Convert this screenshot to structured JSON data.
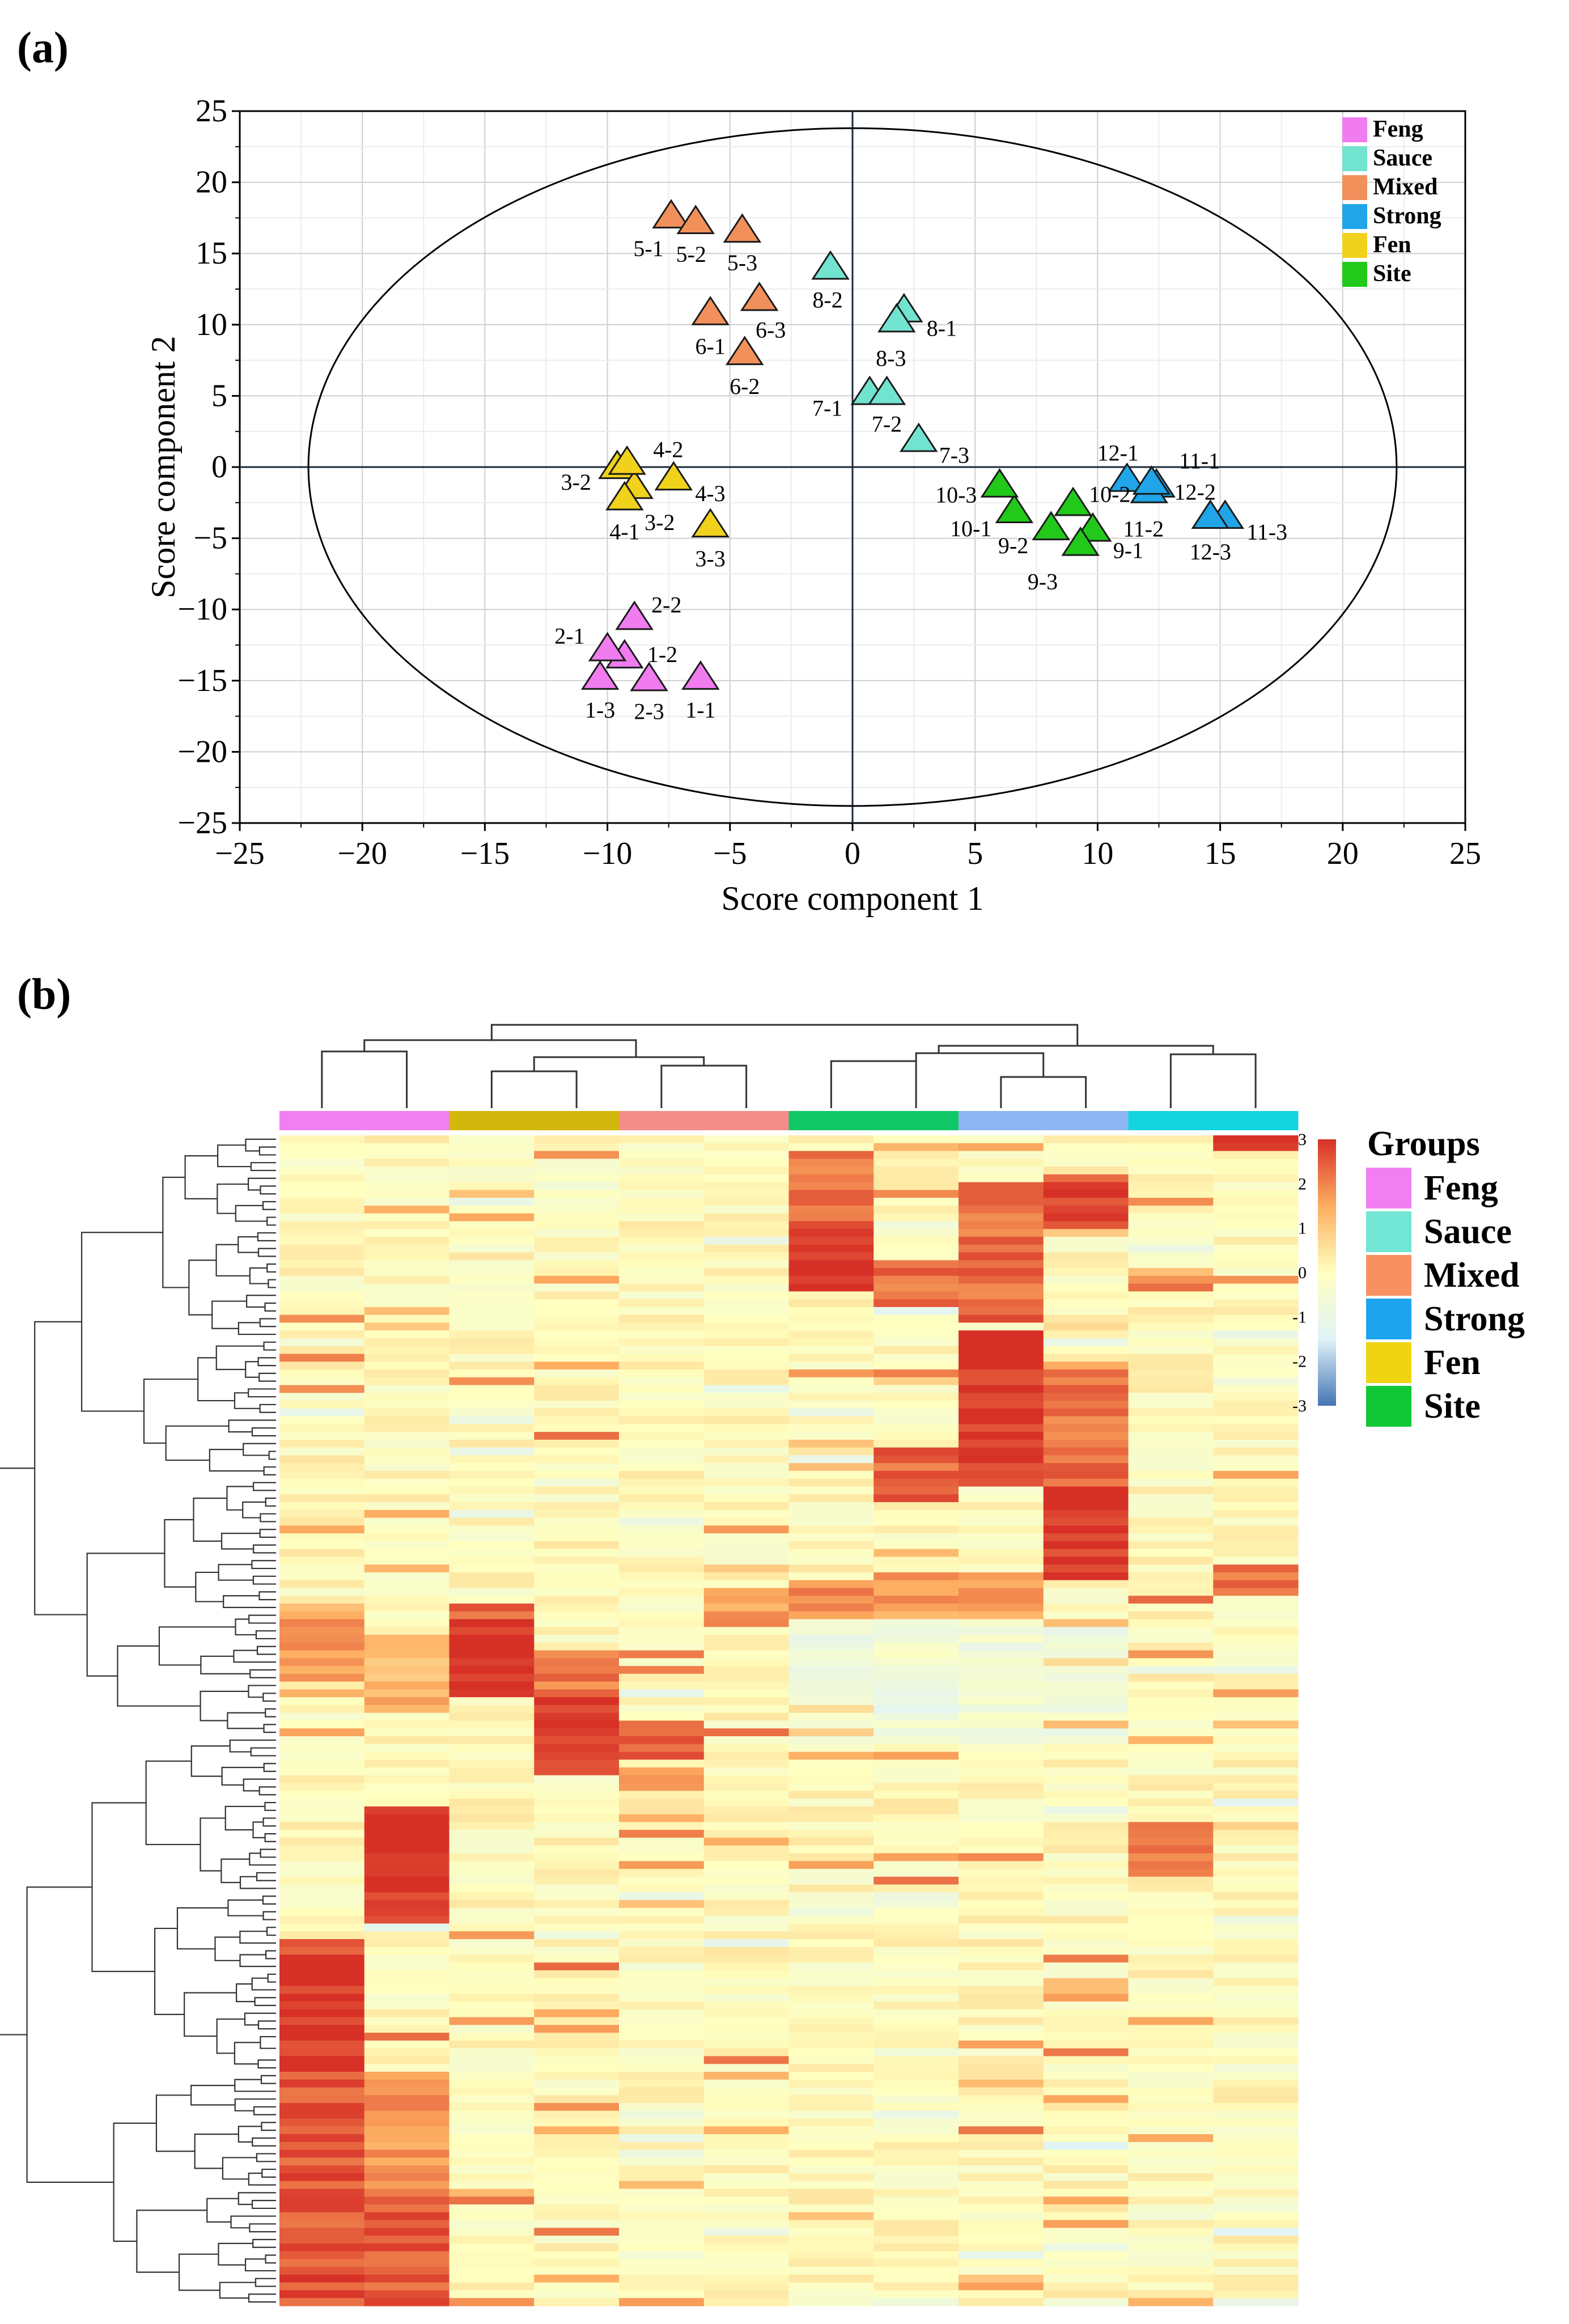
{
  "panels": {
    "a_label": "(a)",
    "b_label": "(b)"
  },
  "chart_data": [
    {
      "type": "scatter",
      "title": "",
      "xlabel": "Score component 1",
      "ylabel": "Score component 2",
      "xlim": [
        -25,
        25
      ],
      "ylim": [
        -25,
        25
      ],
      "xticks": [
        -25,
        -20,
        -15,
        -10,
        -5,
        0,
        5,
        10,
        15,
        20,
        25
      ],
      "yticks": [
        -25,
        -20,
        -15,
        -10,
        -5,
        0,
        5,
        10,
        15,
        20,
        25
      ],
      "xtick_labels": [
        "−25",
        "−20",
        "−15",
        "−10",
        "−5",
        "0",
        "5",
        "10",
        "15",
        "20",
        "25"
      ],
      "ytick_labels": [
        "−25",
        "−20",
        "−15",
        "−10",
        "−5",
        "0",
        "5",
        "10",
        "15",
        "20",
        "25"
      ],
      "grid": true,
      "confidence_ellipse": {
        "cx": 0,
        "cy": 0,
        "rx": 22.2,
        "ry": 23.8
      },
      "legend_position": "top-right",
      "series": [
        {
          "name": "Feng",
          "color": "#f07cf0",
          "points": [
            {
              "id": "1-1",
              "x": -6.2,
              "y": -14.8
            },
            {
              "id": "1-2",
              "x": -9.3,
              "y": -13.3
            },
            {
              "id": "1-3",
              "x": -10.3,
              "y": -14.8
            },
            {
              "id": "2-1",
              "x": -10.0,
              "y": -12.8
            },
            {
              "id": "2-2",
              "x": -8.9,
              "y": -10.6
            },
            {
              "id": "2-3",
              "x": -8.3,
              "y": -14.9
            }
          ]
        },
        {
          "name": "Sauce",
          "color": "#72e3cf",
          "points": [
            {
              "id": "7-1",
              "x": 0.7,
              "y": 5.2
            },
            {
              "id": "7-2",
              "x": 1.4,
              "y": 5.2
            },
            {
              "id": "7-3",
              "x": 2.7,
              "y": 1.9
            },
            {
              "id": "8-1",
              "x": 2.1,
              "y": 11.0
            },
            {
              "id": "8-2",
              "x": -0.9,
              "y": 14.0
            },
            {
              "id": "8-3",
              "x": 1.8,
              "y": 10.3
            }
          ]
        },
        {
          "name": "Mixed",
          "color": "#f2905c",
          "points": [
            {
              "id": "5-1",
              "x": -7.4,
              "y": 17.6
            },
            {
              "id": "5-2",
              "x": -6.4,
              "y": 17.2
            },
            {
              "id": "5-3",
              "x": -4.5,
              "y": 16.6
            },
            {
              "id": "6-1",
              "x": -5.8,
              "y": 10.8
            },
            {
              "id": "6-2",
              "x": -4.4,
              "y": 8.0
            },
            {
              "id": "6-3",
              "x": -3.8,
              "y": 11.8
            }
          ]
        },
        {
          "name": "Strong",
          "color": "#20a5e8",
          "points": [
            {
              "id": "11-1",
              "x": 12.4,
              "y": -1.3
            },
            {
              "id": "11-2",
              "x": 12.1,
              "y": -1.7
            },
            {
              "id": "11-3",
              "x": 15.2,
              "y": -3.5
            },
            {
              "id": "12-1",
              "x": 11.2,
              "y": -0.9
            },
            {
              "id": "12-2",
              "x": 12.2,
              "y": -1.1
            },
            {
              "id": "12-3",
              "x": 14.6,
              "y": -3.5
            }
          ]
        },
        {
          "name": "Fen",
          "color": "#f0d21c",
          "points": [
            {
              "id": "3-2",
              "x": -9.6,
              "y": 0.0
            },
            {
              "id": "3-2",
              "x": -8.9,
              "y": -1.4
            },
            {
              "id": "3-3",
              "x": -5.8,
              "y": -4.1
            },
            {
              "id": "4-1",
              "x": -9.3,
              "y": -2.2
            },
            {
              "id": "4-2",
              "x": -9.2,
              "y": 0.3
            },
            {
              "id": "4-3",
              "x": -7.3,
              "y": -0.8
            }
          ]
        },
        {
          "name": "Site",
          "color": "#22c81a",
          "points": [
            {
              "id": "9-1",
              "x": 9.8,
              "y": -4.4
            },
            {
              "id": "9-2",
              "x": 8.1,
              "y": -4.3
            },
            {
              "id": "9-3",
              "x": 9.3,
              "y": -5.4
            },
            {
              "id": "10-1",
              "x": 6.6,
              "y": -3.1
            },
            {
              "id": "10-2",
              "x": 9.0,
              "y": -2.6
            },
            {
              "id": "10-3",
              "x": 6.0,
              "y": -1.3
            }
          ]
        }
      ]
    },
    {
      "type": "heatmap",
      "title": "",
      "legend_title": "Groups",
      "groups": [
        {
          "name": "Feng",
          "color": "#f27ff2"
        },
        {
          "name": "Sauce",
          "color": "#72e6d4"
        },
        {
          "name": "Mixed",
          "color": "#f79160"
        },
        {
          "name": "Strong",
          "color": "#1ea4ef"
        },
        {
          "name": "Fen",
          "color": "#f0d414"
        },
        {
          "name": "Site",
          "color": "#10c835"
        }
      ],
      "column_group_colors": [
        "#f27ff2",
        "#d4b70c",
        "#f48c88",
        "#10c866",
        "#8cb7f2",
        "#14d4e0"
      ],
      "colorbar": {
        "range": [
          -3,
          3
        ],
        "ticks": [
          3,
          2,
          1,
          0,
          -1,
          -2,
          -3
        ],
        "tick_labels": [
          "3",
          "2",
          "1",
          "0",
          "-1",
          "-2",
          "-3"
        ],
        "colors": [
          "#4575b4",
          "#e0f3f8",
          "#ffffbf",
          "#fdae61",
          "#d73027"
        ]
      },
      "columns": 12,
      "rows": 150
    }
  ]
}
